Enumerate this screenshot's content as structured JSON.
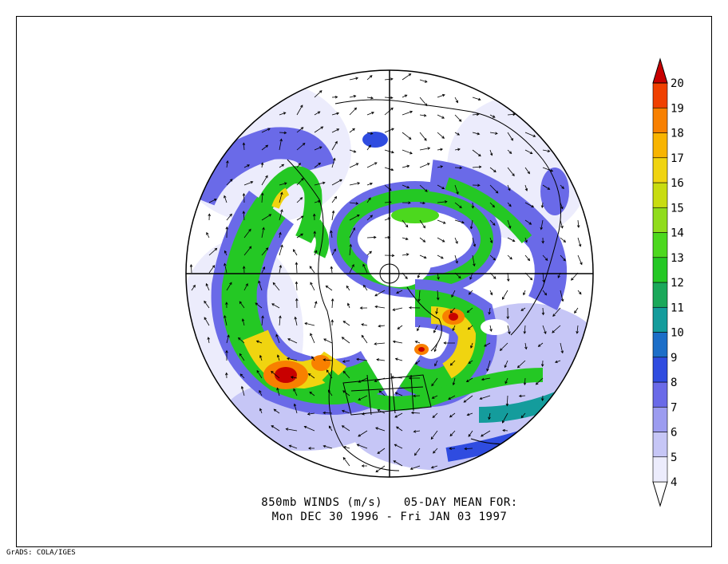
{
  "title_line1": "850mb WINDS (m/s)   05-DAY MEAN FOR:",
  "title_line2": "Mon DEC 30 1996 - Fri JAN 03 1997",
  "footer": "GrADS: COLA/IGES",
  "legend": {
    "levels": [
      "4",
      "5",
      "6",
      "7",
      "8",
      "9",
      "10",
      "11",
      "12",
      "13",
      "14",
      "15",
      "16",
      "17",
      "18",
      "19",
      "20"
    ],
    "colors": [
      "#ececfc",
      "#c6c6f6",
      "#9c9cf0",
      "#6a6ae8",
      "#2f4ce0",
      "#1c6ec8",
      "#149c9c",
      "#1aa85a",
      "#24c824",
      "#4cd81e",
      "#90dc1c",
      "#c8dc10",
      "#f0d410",
      "#f8b400",
      "#f88000",
      "#f04000",
      "#c80000"
    ]
  }
}
